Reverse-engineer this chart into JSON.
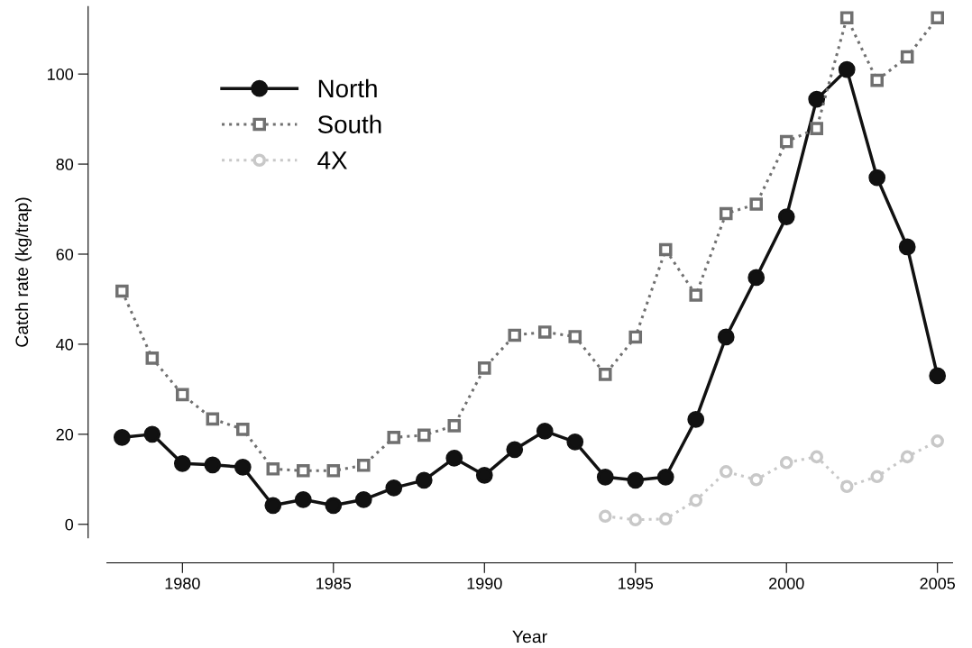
{
  "chart_data": {
    "type": "line",
    "xlabel": "Year",
    "ylabel": "Catch rate (kg/trap)",
    "xlim": [
      1977.5,
      2005.5
    ],
    "ylim": [
      -3,
      115
    ],
    "xticks": [
      1980,
      1985,
      1990,
      1995,
      2000,
      2005
    ],
    "yticks": [
      0,
      20,
      40,
      60,
      80,
      100
    ],
    "grid": false,
    "legend": "top left",
    "series": [
      {
        "name": "North",
        "color": "#111111",
        "marker": "circle",
        "line_style": "solid",
        "x": [
          1978,
          1979,
          1980,
          1981,
          1982,
          1983,
          1984,
          1985,
          1986,
          1987,
          1988,
          1989,
          1990,
          1991,
          1992,
          1993,
          1994,
          1995,
          1996,
          1997,
          1998,
          1999,
          2000,
          2001,
          2002,
          2003,
          2004,
          2005
        ],
        "values": [
          19.3,
          20,
          13.5,
          13.2,
          12.7,
          4.2,
          5.5,
          4.2,
          5.5,
          8.1,
          9.8,
          14.7,
          10.9,
          16.6,
          20.7,
          18.3,
          10.5,
          9.8,
          10.5,
          23.3,
          41.6,
          54.8,
          68.3,
          94.4,
          101,
          77,
          61.6,
          33
        ]
      },
      {
        "name": "South",
        "color": "#707070",
        "marker": "square",
        "line_style": "dotted",
        "x": [
          1978,
          1979,
          1980,
          1981,
          1982,
          1983,
          1984,
          1985,
          1986,
          1987,
          1988,
          1989,
          1990,
          1991,
          1992,
          1993,
          1994,
          1995,
          1996,
          1997,
          1998,
          1999,
          2000,
          2001,
          2002,
          2003,
          2004,
          2005
        ],
        "values": [
          51.8,
          36.9,
          28.8,
          23.4,
          21.1,
          12.3,
          11.9,
          11.9,
          13.1,
          19.3,
          19.8,
          21.9,
          34.7,
          42,
          42.7,
          41.7,
          33.3,
          41.6,
          61,
          50.9,
          69,
          71.1,
          85,
          87.9,
          112.5,
          98.6,
          103.8,
          112.5
        ]
      },
      {
        "name": "4X",
        "color": "#c8c8c8",
        "marker": "circle",
        "line_style": "dotted",
        "x": [
          1994,
          1995,
          1996,
          1997,
          1998,
          1999,
          2000,
          2001,
          2002,
          2003,
          2004,
          2005
        ],
        "values": [
          1.8,
          1,
          1.2,
          5.3,
          11.7,
          9.9,
          13.7,
          15,
          8.4,
          10.6,
          15,
          18.5
        ]
      }
    ]
  }
}
